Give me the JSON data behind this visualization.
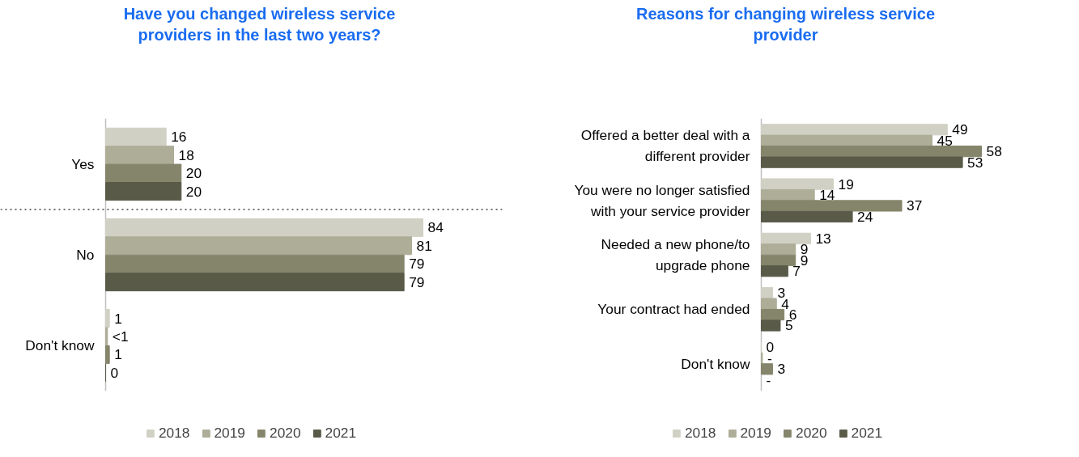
{
  "chart_data": [
    {
      "type": "bar",
      "orientation": "horizontal",
      "title": "Have you changed wireless service providers in the last two years?",
      "categories": [
        "Yes",
        "No",
        "Don't know"
      ],
      "data_labels": true,
      "legend": "bottom",
      "grid": false,
      "series": [
        {
          "name": "2018",
          "color": "#d0d0c4",
          "values": [
            16,
            84,
            1
          ]
        },
        {
          "name": "2019",
          "color": "#adad98",
          "values": [
            18,
            81,
            0.5
          ],
          "value_labels": [
            "18",
            "81",
            "<1"
          ]
        },
        {
          "name": "2020",
          "color": "#85856c",
          "values": [
            20,
            79,
            1
          ]
        },
        {
          "name": "2021",
          "color": "#595a48",
          "values": [
            20,
            79,
            0
          ]
        }
      ]
    },
    {
      "type": "bar",
      "orientation": "horizontal",
      "title": "Reasons for changing wireless service provider",
      "categories": [
        "Offered a better deal with a different provider",
        "You were no longer satisfied with your service provider",
        "Needed a new phone/to upgrade phone",
        "Your contract had ended",
        "Don't know"
      ],
      "data_labels": true,
      "legend": "bottom",
      "grid": false,
      "series": [
        {
          "name": "2018",
          "color": "#d0d0c4",
          "values": [
            49,
            19,
            13,
            3,
            0
          ]
        },
        {
          "name": "2019",
          "color": "#adad98",
          "values": [
            45,
            14,
            9,
            4,
            0.3
          ],
          "value_labels": [
            "45",
            "14",
            "9",
            "4",
            "-"
          ]
        },
        {
          "name": "2020",
          "color": "#85856c",
          "values": [
            58,
            37,
            9,
            6,
            3
          ]
        },
        {
          "name": "2021",
          "color": "#595a48",
          "values": [
            53,
            24,
            7,
            5,
            null
          ],
          "value_labels": [
            "53",
            "24",
            "7",
            "5",
            "-"
          ]
        }
      ]
    }
  ]
}
